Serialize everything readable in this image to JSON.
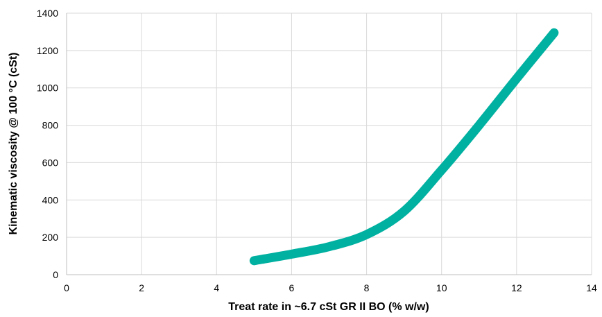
{
  "chart_data": {
    "type": "line",
    "title": "",
    "xlabel": "Treat rate in ~6.7 cSt GR II BO (% w/w)",
    "ylabel": "Kinematic viscosity @ 100 °C (cSt)",
    "xlim": [
      0,
      14
    ],
    "ylim": [
      0,
      1400
    ],
    "xticks": [
      0,
      2,
      4,
      6,
      8,
      10,
      12,
      14
    ],
    "yticks": [
      0,
      200,
      400,
      600,
      800,
      1000,
      1200,
      1400
    ],
    "grid": true,
    "legend": "none",
    "series": [
      {
        "color": "#00b0a0",
        "x": [
          5,
          6,
          7,
          8,
          9,
          10,
          11,
          12,
          13
        ],
        "y": [
          75,
          110,
          150,
          215,
          340,
          560,
          800,
          1050,
          1295
        ]
      }
    ]
  }
}
